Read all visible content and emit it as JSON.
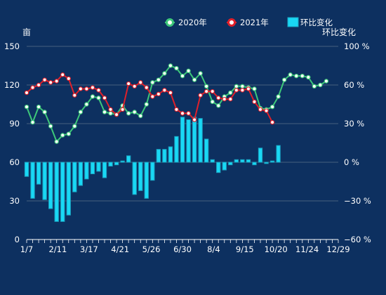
{
  "legend": {
    "items": [
      {
        "label": "2020年",
        "color": "#3ec87a",
        "marker": "circle-dot"
      },
      {
        "label": "2021年",
        "color": "#e0202a",
        "marker": "circle-dot"
      },
      {
        "label": "环比变化",
        "color": "#19d8f5",
        "marker": "rect"
      }
    ]
  },
  "colors": {
    "background": "#0d3060",
    "text": "#ffffff",
    "grid": "#5b7189",
    "line2020": "#3ec87a",
    "line2021": "#e0202a",
    "bar": "#19d8f5",
    "bar_stroke": "#1aa2c0"
  },
  "chart_data": {
    "type": "line",
    "y_left": {
      "label": "亩",
      "min": 0,
      "max": 150,
      "ticks": [
        0,
        30,
        60,
        90,
        120,
        150
      ]
    },
    "y_right": {
      "label": "环比变化",
      "min": -60,
      "max": 100,
      "unit": "%",
      "ticks": [
        -60,
        -30,
        0,
        30,
        60,
        100
      ],
      "tick_labels": [
        "−60 %",
        "−30 %",
        "0 %",
        "30 %",
        "60 %",
        "100 %"
      ]
    },
    "x_tick_labels": [
      "1/7",
      "2/11",
      "3/17",
      "4/21",
      "5/26",
      "6/30",
      "8/4",
      "9/15",
      "10/20",
      "11/24",
      "12/29"
    ],
    "series": [
      {
        "name": "2020年",
        "type": "line",
        "axis": "left",
        "values": [
          103,
          91,
          103,
          99,
          88,
          76,
          81,
          82,
          88,
          99,
          105,
          111,
          110,
          99,
          98,
          97,
          104,
          98,
          99,
          96,
          105,
          122,
          124,
          129,
          135,
          133,
          127,
          131,
          124,
          129,
          119,
          107,
          104,
          111,
          114,
          119,
          119,
          118,
          117,
          102,
          101,
          103,
          111,
          124,
          128,
          127,
          127,
          126,
          119,
          120,
          123
        ]
      },
      {
        "name": "2021年",
        "type": "line",
        "axis": "left",
        "values": [
          114,
          118,
          120,
          124,
          122,
          123,
          128,
          125,
          112,
          117,
          117,
          118,
          116,
          110,
          101,
          97,
          101,
          121,
          119,
          122,
          118,
          111,
          113,
          116,
          114,
          101,
          98,
          98,
          93,
          112,
          115,
          115,
          110,
          109,
          109,
          116,
          116,
          117,
          107,
          101,
          100,
          91
        ]
      },
      {
        "name": "环比变化",
        "type": "bar",
        "axis": "right",
        "values": [
          -11,
          -28,
          -17,
          -29,
          -36,
          -46,
          -46,
          -41,
          -23,
          -18,
          -13,
          -9,
          -7,
          -12,
          -3,
          -2,
          1,
          5,
          -25,
          -22,
          -28,
          -14,
          10,
          10,
          12,
          20,
          35,
          33,
          35,
          34,
          18,
          2,
          -8,
          -6,
          -2,
          2,
          2,
          2,
          -2,
          11,
          -1,
          1,
          13
        ]
      }
    ]
  }
}
